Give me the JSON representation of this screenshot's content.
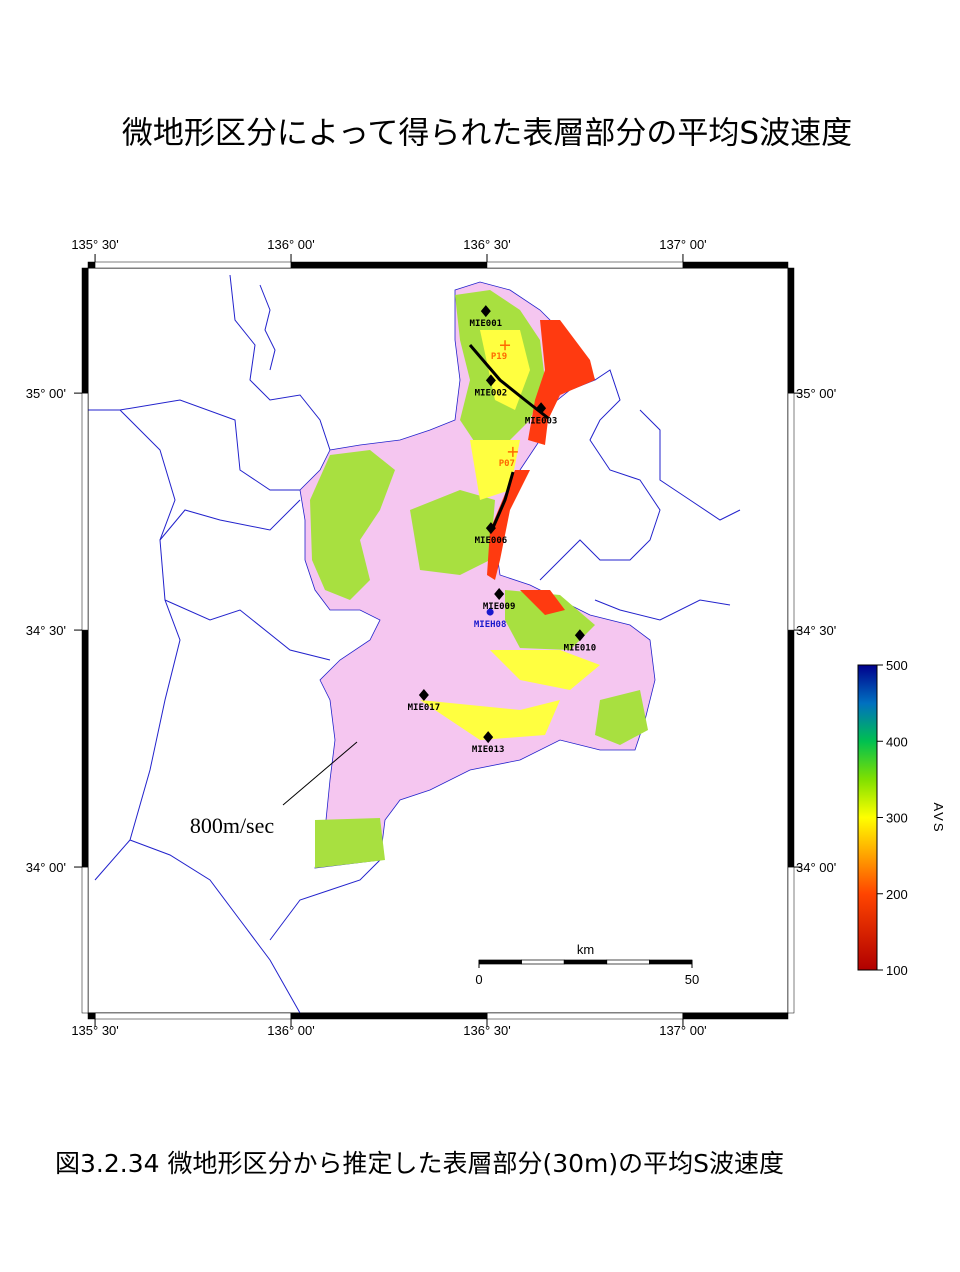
{
  "title": "微地形区分によって得られた表層部分の平均S波速度",
  "map": {
    "lonlim": [
      135.482,
      137.268
    ],
    "latlim": [
      33.692,
      35.264
    ],
    "lon_ticks": [
      {
        "value": 135.5,
        "label": "135° 30'"
      },
      {
        "value": 136,
        "label": "136° 00'"
      },
      {
        "value": 136.5,
        "label": "136° 30'"
      },
      {
        "value": 137,
        "label": "137° 00'"
      }
    ],
    "lat_ticks": [
      {
        "value": 34,
        "label": "34° 00'"
      },
      {
        "value": 34.5,
        "label": "34° 30'"
      },
      {
        "value": 35,
        "label": "35° 00'"
      }
    ],
    "stations": [
      {
        "label": "MIE001",
        "lon": 136.497,
        "lat": 35.173,
        "color": "#000000"
      },
      {
        "label": "MIE002",
        "lon": 136.51,
        "lat": 35.027,
        "color": "#000000"
      },
      {
        "label": "MIE003",
        "lon": 136.638,
        "lat": 34.968,
        "color": "#000000"
      },
      {
        "label": "MIE006",
        "lon": 136.51,
        "lat": 34.715,
        "color": "#000000"
      },
      {
        "label": "MIE009",
        "lon": 136.531,
        "lat": 34.576,
        "color": "#000000"
      },
      {
        "label": "MIEH08",
        "lon": 136.508,
        "lat": 34.538,
        "color": "#1a1acc"
      },
      {
        "label": "MIE010",
        "lon": 136.737,
        "lat": 34.489,
        "color": "#000000"
      },
      {
        "label": "MIE017",
        "lon": 136.339,
        "lat": 34.363,
        "color": "#000000"
      },
      {
        "label": "MIE013",
        "lon": 136.503,
        "lat": 34.274,
        "color": "#000000"
      }
    ],
    "sites": [
      {
        "label": "P19",
        "lon": 136.546,
        "lat": 35.101,
        "color": "#ff6a00"
      },
      {
        "label": "P07",
        "lon": 136.566,
        "lat": 34.876,
        "color": "#ff6a00"
      }
    ],
    "annotation": "800m/sec",
    "scale_bar": {
      "unit": "km",
      "ticks": [
        0,
        50
      ]
    },
    "colorbar": {
      "title": "AVS",
      "lim": [
        100,
        500
      ],
      "ticks": [
        100,
        200,
        300,
        400,
        500
      ],
      "stops": [
        {
          "value": 100,
          "color": "#b00000"
        },
        {
          "value": 200,
          "color": "#ff4500"
        },
        {
          "value": 300,
          "color": "#ffff00"
        },
        {
          "value": 350,
          "color": "#80e000"
        },
        {
          "value": 400,
          "color": "#00c050"
        },
        {
          "value": 450,
          "color": "#0070c0"
        },
        {
          "value": 500,
          "color": "#00008c"
        }
      ]
    }
  },
  "caption": "図3.2.34  微地形区分から推定した表層部分(30m)の平均S波速度"
}
